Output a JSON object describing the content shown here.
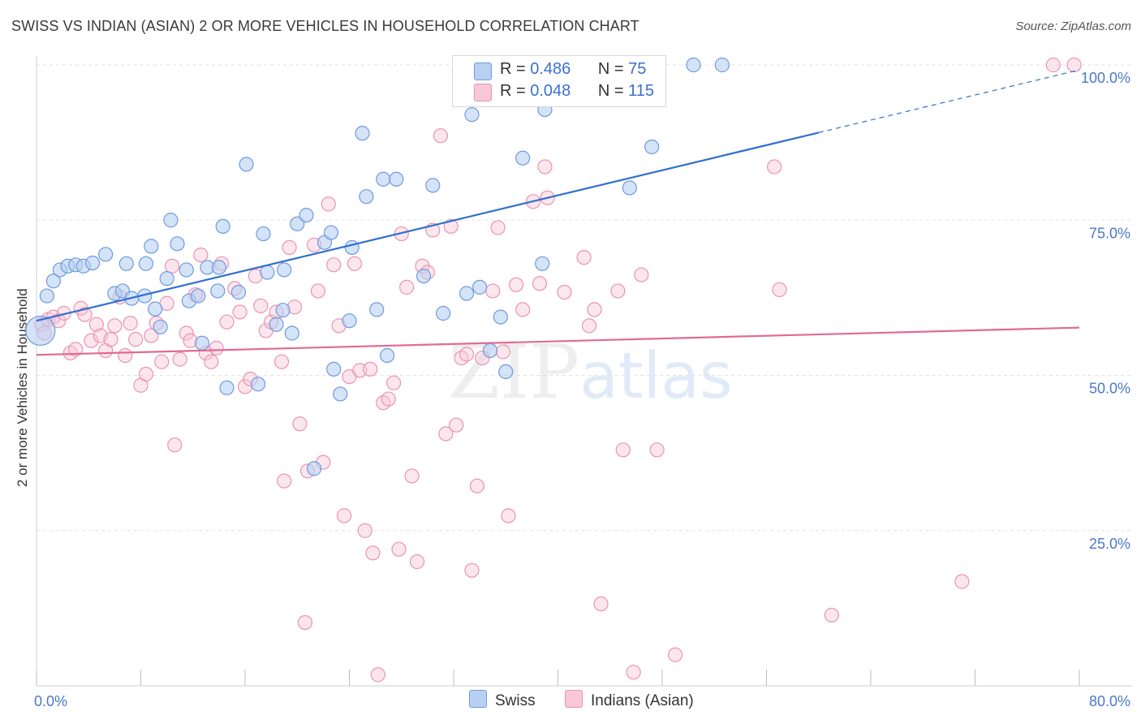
{
  "title": "SWISS VS INDIAN (ASIAN) 2 OR MORE VEHICLES IN HOUSEHOLD CORRELATION CHART",
  "source": "Source: ZipAtlas.com",
  "watermark": {
    "zip": "ZIP",
    "atlas": "atlas"
  },
  "legend": {
    "r_label": "R =",
    "n_label": "N =",
    "swiss": {
      "r": "0.486",
      "n": "75"
    },
    "indian": {
      "r": "0.048",
      "n": "115"
    }
  },
  "colors": {
    "swiss_fill": "#b8d0f2",
    "swiss_stroke": "#6f9ae0",
    "swiss_line": "#2f6fd0",
    "indian_fill": "#f8c8d8",
    "indian_stroke": "#ea93b2",
    "indian_line": "#e06b94",
    "axis_text": "#4a78c9",
    "grid": "#e2e2e2"
  },
  "chart_data": {
    "type": "scatter",
    "title": "SWISS VS INDIAN (ASIAN) 2 OR MORE VEHICLES IN HOUSEHOLD CORRELATION CHART",
    "xlabel": "",
    "ylabel": "2 or more Vehicles in Household",
    "xlim": [
      0,
      80
    ],
    "ylim": [
      0,
      100
    ],
    "x_tick_labels": [
      "0.0%",
      "80.0%"
    ],
    "y_ticks": [
      25,
      50,
      75,
      100
    ],
    "y_tick_labels": [
      "25.0%",
      "50.0%",
      "75.0%",
      "100.0%"
    ],
    "grid": true,
    "legend_position": "bottom",
    "series": [
      {
        "name": "Swiss",
        "r": 0.486,
        "n": 75,
        "trend": {
          "x0": 0,
          "y0": 58.8,
          "x1": 60,
          "y1": 89.1,
          "dash_to_x": 80,
          "dash_to_y": 99.2
        },
        "points": [
          [
            0.3,
            57.2
          ],
          [
            0.8,
            62.8
          ],
          [
            1.3,
            65.2
          ],
          [
            1.8,
            67.0
          ],
          [
            2.4,
            67.6
          ],
          [
            3.0,
            67.8
          ],
          [
            3.6,
            67.6
          ],
          [
            4.3,
            68.1
          ],
          [
            5.3,
            69.5
          ],
          [
            6.0,
            63.2
          ],
          [
            6.6,
            63.6
          ],
          [
            7.3,
            62.4
          ],
          [
            6.9,
            68.0
          ],
          [
            8.3,
            62.8
          ],
          [
            8.8,
            70.8
          ],
          [
            8.4,
            68.0
          ],
          [
            9.1,
            60.7
          ],
          [
            9.5,
            57.8
          ],
          [
            10.0,
            65.6
          ],
          [
            10.3,
            75.0
          ],
          [
            10.8,
            71.2
          ],
          [
            11.5,
            67.0
          ],
          [
            11.7,
            62.0
          ],
          [
            12.4,
            62.8
          ],
          [
            12.7,
            55.2
          ],
          [
            13.1,
            67.4
          ],
          [
            13.9,
            63.6
          ],
          [
            14.3,
            74.0
          ],
          [
            14.0,
            67.4
          ],
          [
            14.6,
            48.0
          ],
          [
            15.5,
            63.4
          ],
          [
            16.1,
            84.0
          ],
          [
            17.0,
            48.6
          ],
          [
            17.4,
            72.8
          ],
          [
            17.7,
            66.6
          ],
          [
            18.4,
            58.2
          ],
          [
            18.9,
            60.5
          ],
          [
            19.0,
            67.0
          ],
          [
            19.6,
            56.8
          ],
          [
            20.0,
            74.4
          ],
          [
            20.7,
            75.8
          ],
          [
            21.3,
            35.0
          ],
          [
            22.1,
            71.4
          ],
          [
            22.6,
            73.0
          ],
          [
            22.8,
            51.0
          ],
          [
            23.3,
            47.0
          ],
          [
            24.0,
            58.8
          ],
          [
            24.2,
            70.6
          ],
          [
            25.0,
            89.0
          ],
          [
            25.3,
            78.8
          ],
          [
            26.1,
            60.6
          ],
          [
            26.6,
            81.6
          ],
          [
            26.9,
            53.2
          ],
          [
            27.6,
            81.6
          ],
          [
            29.7,
            66.0
          ],
          [
            30.4,
            80.6
          ],
          [
            31.2,
            60.0
          ],
          [
            33.0,
            63.2
          ],
          [
            33.4,
            92.0
          ],
          [
            34.0,
            64.2
          ],
          [
            34.8,
            54.0
          ],
          [
            35.6,
            59.4
          ],
          [
            35.0,
            100.0
          ],
          [
            36.0,
            50.6
          ],
          [
            37.3,
            85.0
          ],
          [
            38.8,
            68.0
          ],
          [
            39.0,
            92.8
          ],
          [
            40.3,
            100.0
          ],
          [
            42.0,
            100.0
          ],
          [
            45.0,
            100.0
          ],
          [
            45.5,
            80.2
          ],
          [
            47.2,
            86.8
          ],
          [
            50.4,
            100.0
          ],
          [
            52.6,
            100.0
          ],
          [
            33.0,
            100.0
          ]
        ]
      },
      {
        "name": "Indians (Asian)",
        "r": 0.048,
        "n": 115,
        "trend": {
          "x0": 0,
          "y0": 53.3,
          "x1": 80,
          "y1": 57.7
        },
        "points": [
          [
            0.4,
            58.2
          ],
          [
            0.9,
            59.0
          ],
          [
            1.3,
            59.4
          ],
          [
            1.7,
            58.8
          ],
          [
            2.1,
            60.0
          ],
          [
            2.6,
            53.6
          ],
          [
            3.0,
            54.2
          ],
          [
            3.4,
            60.8
          ],
          [
            3.7,
            59.8
          ],
          [
            4.2,
            55.6
          ],
          [
            4.6,
            58.2
          ],
          [
            4.9,
            56.4
          ],
          [
            5.3,
            54.0
          ],
          [
            5.7,
            55.8
          ],
          [
            6.0,
            58.0
          ],
          [
            6.4,
            62.6
          ],
          [
            6.8,
            53.2
          ],
          [
            7.2,
            58.4
          ],
          [
            7.6,
            55.8
          ],
          [
            8.0,
            48.4
          ],
          [
            8.4,
            50.2
          ],
          [
            8.8,
            56.4
          ],
          [
            9.2,
            58.4
          ],
          [
            9.6,
            52.2
          ],
          [
            10.0,
            61.6
          ],
          [
            10.4,
            67.6
          ],
          [
            10.6,
            38.8
          ],
          [
            11.0,
            52.6
          ],
          [
            11.5,
            56.8
          ],
          [
            11.8,
            55.6
          ],
          [
            12.2,
            63.0
          ],
          [
            12.6,
            69.4
          ],
          [
            13.0,
            53.6
          ],
          [
            13.4,
            52.2
          ],
          [
            13.8,
            54.4
          ],
          [
            14.2,
            68.0
          ],
          [
            14.6,
            58.6
          ],
          [
            15.2,
            64.0
          ],
          [
            15.6,
            60.2
          ],
          [
            16.0,
            48.2
          ],
          [
            16.4,
            49.4
          ],
          [
            16.8,
            66.0
          ],
          [
            17.2,
            61.2
          ],
          [
            17.6,
            57.2
          ],
          [
            18.0,
            58.6
          ],
          [
            18.4,
            60.2
          ],
          [
            18.8,
            52.2
          ],
          [
            19.0,
            33.0
          ],
          [
            19.4,
            70.6
          ],
          [
            19.8,
            61.0
          ],
          [
            20.2,
            42.2
          ],
          [
            20.6,
            10.2
          ],
          [
            20.8,
            34.6
          ],
          [
            21.3,
            71.0
          ],
          [
            21.6,
            63.6
          ],
          [
            22.0,
            36.0
          ],
          [
            22.4,
            77.6
          ],
          [
            22.8,
            67.8
          ],
          [
            23.2,
            58.0
          ],
          [
            23.6,
            27.4
          ],
          [
            24.0,
            49.8
          ],
          [
            24.4,
            68.0
          ],
          [
            24.8,
            50.8
          ],
          [
            25.2,
            25.0
          ],
          [
            25.6,
            51.0
          ],
          [
            25.8,
            21.4
          ],
          [
            26.2,
            1.8
          ],
          [
            26.6,
            45.6
          ],
          [
            27.0,
            46.2
          ],
          [
            27.4,
            48.8
          ],
          [
            27.8,
            22.0
          ],
          [
            28.0,
            72.8
          ],
          [
            28.4,
            64.2
          ],
          [
            28.8,
            33.8
          ],
          [
            29.2,
            20.0
          ],
          [
            29.6,
            67.6
          ],
          [
            30.0,
            66.6
          ],
          [
            30.4,
            73.4
          ],
          [
            31.0,
            88.6
          ],
          [
            31.4,
            40.6
          ],
          [
            31.8,
            74.0
          ],
          [
            32.2,
            42.0
          ],
          [
            32.6,
            52.8
          ],
          [
            33.0,
            53.4
          ],
          [
            33.4,
            18.6
          ],
          [
            33.8,
            32.2
          ],
          [
            34.2,
            52.8
          ],
          [
            35.0,
            63.6
          ],
          [
            35.4,
            73.8
          ],
          [
            35.8,
            53.8
          ],
          [
            36.2,
            27.4
          ],
          [
            36.8,
            64.6
          ],
          [
            37.3,
            60.6
          ],
          [
            38.1,
            78.0
          ],
          [
            38.6,
            64.8
          ],
          [
            39.0,
            83.6
          ],
          [
            39.2,
            78.6
          ],
          [
            40.5,
            63.4
          ],
          [
            42.0,
            69.0
          ],
          [
            42.4,
            58.0
          ],
          [
            42.8,
            60.6
          ],
          [
            43.3,
            13.2
          ],
          [
            44.6,
            63.6
          ],
          [
            45.0,
            38.0
          ],
          [
            45.8,
            2.2
          ],
          [
            46.4,
            66.2
          ],
          [
            47.6,
            38.0
          ],
          [
            49.0,
            5.0
          ],
          [
            56.6,
            83.6
          ],
          [
            57.0,
            63.8
          ],
          [
            61.0,
            11.4
          ],
          [
            71.0,
            16.8
          ],
          [
            78.0,
            100.0
          ],
          [
            79.6,
            100.0
          ],
          [
            0.6,
            56.8
          ]
        ]
      }
    ]
  },
  "bottom_legend": {
    "swiss": "Swiss",
    "indian": "Indians (Asian)"
  }
}
